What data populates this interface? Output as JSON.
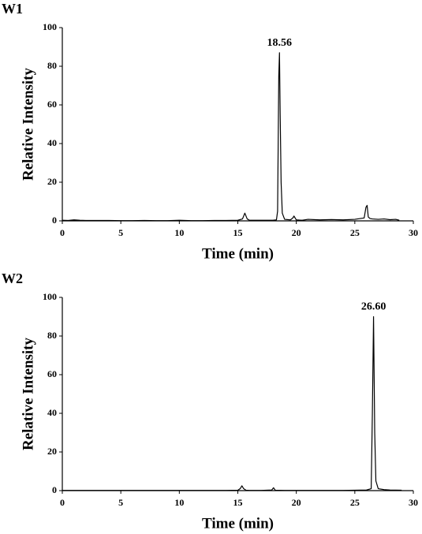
{
  "chart_data": [
    {
      "type": "line",
      "panel_label": "W1",
      "xlabel": "Time (min)",
      "ylabel": "Relative Intensity",
      "color": "#000000",
      "x": [
        0,
        0.5,
        1,
        1.5,
        2,
        3,
        4,
        5,
        6,
        7,
        8,
        9,
        10,
        11,
        12,
        13,
        14,
        15,
        15.4,
        15.6,
        15.8,
        16,
        17,
        18,
        18.3,
        18.4,
        18.45,
        18.5,
        18.56,
        18.62,
        18.7,
        18.8,
        19,
        19.5,
        19.7,
        19.8,
        20,
        20.5,
        21,
        22,
        23,
        24,
        25,
        25.8,
        25.95,
        26.05,
        26.15,
        26.3,
        26.5,
        27,
        27.5,
        28,
        28.5,
        28.8
      ],
      "values": [
        0.3,
        0.2,
        0.5,
        0.3,
        0.2,
        0.2,
        0.2,
        0.1,
        0.1,
        0.2,
        0.1,
        0.1,
        0.3,
        0.1,
        0.1,
        0.2,
        0.2,
        0.3,
        1,
        4,
        1,
        0.3,
        0.3,
        0.3,
        0.5,
        5,
        40,
        75,
        87,
        55,
        20,
        4,
        0.8,
        0.5,
        1.5,
        2.5,
        0.5,
        0.3,
        0.8,
        0.5,
        0.7,
        0.5,
        0.8,
        1.5,
        7,
        8,
        2,
        1.2,
        1,
        0.8,
        1,
        0.6,
        0.8,
        0.3
      ],
      "annotations": [
        {
          "text": "18.56",
          "x": 18.56,
          "y": 87
        }
      ],
      "xlim": [
        0,
        30
      ],
      "xticks": [
        0,
        5,
        10,
        15,
        20,
        25,
        30
      ],
      "ylim": [
        0,
        100
      ],
      "yticks": [
        0,
        20,
        40,
        60,
        80,
        100
      ]
    },
    {
      "type": "line",
      "panel_label": "W2",
      "xlabel": "Time (min)",
      "ylabel": "Relative Intensity",
      "color": "#000000",
      "x": [
        0,
        1,
        2,
        4,
        6,
        8,
        10,
        12,
        14,
        15,
        15.2,
        15.35,
        15.5,
        15.7,
        16,
        17,
        17.9,
        18.05,
        18.2,
        19,
        20,
        22,
        24,
        25,
        26,
        26.4,
        26.5,
        26.6,
        26.7,
        26.8,
        27,
        27.5,
        28,
        29
      ],
      "values": [
        0.1,
        0.1,
        0.1,
        0.1,
        0.1,
        0.1,
        0.1,
        0.1,
        0.1,
        0.2,
        1,
        2.5,
        1,
        0.2,
        0.1,
        0.1,
        0.3,
        1.5,
        0.2,
        0.1,
        0.1,
        0.1,
        0.1,
        0.2,
        0.3,
        1,
        40,
        90,
        30,
        5,
        1,
        0.5,
        0.3,
        0.2
      ],
      "annotations": [
        {
          "text": "26.60",
          "x": 26.6,
          "y": 90
        }
      ],
      "xlim": [
        0,
        30
      ],
      "xticks": [
        0,
        5,
        10,
        15,
        20,
        25,
        30
      ],
      "ylim": [
        0,
        100
      ],
      "yticks": [
        0,
        20,
        40,
        60,
        80,
        100
      ]
    }
  ]
}
